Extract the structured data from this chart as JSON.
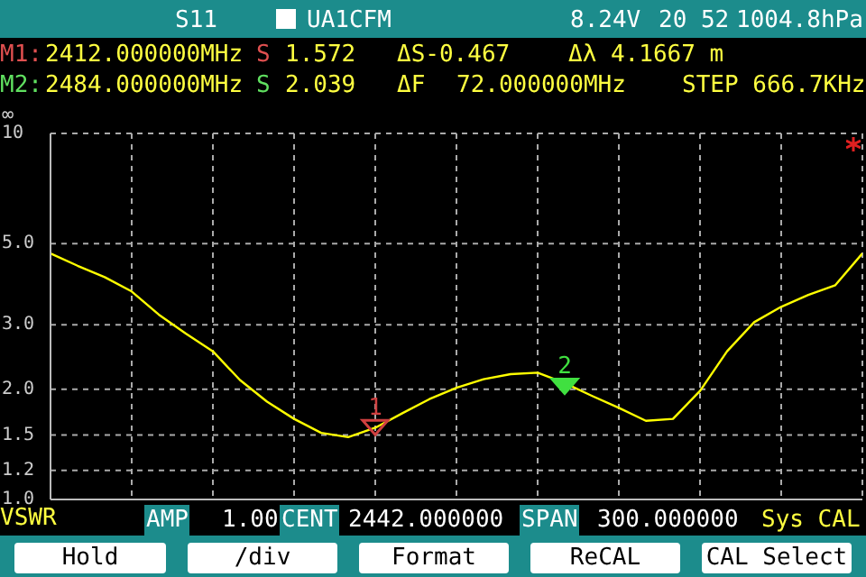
{
  "chart_data": {
    "type": "line",
    "ylabel": "VSWR",
    "categories": [
      null,
      null,
      null,
      null,
      null,
      null,
      null,
      null,
      null,
      null,
      null,
      null,
      null,
      null,
      null,
      null,
      null,
      null,
      null,
      null,
      null,
      null,
      null,
      null,
      null,
      null,
      null,
      null,
      null,
      null,
      null
    ],
    "ylim": [
      1,
      10
    ],
    "log": true,
    "yticks": [
      {
        "value": 1.0,
        "label": "1.0"
      },
      {
        "value": 1.2,
        "label": "1.2"
      },
      {
        "value": 1.5,
        "label": "1.5"
      },
      {
        "value": 2,
        "label": "2.0"
      },
      {
        "value": 3,
        "label": "3.0"
      },
      {
        "value": 5,
        "label": "5.0"
      },
      {
        "value": 10,
        "label": "10"
      }
    ],
    "tick_labels": "y",
    "grid": true,
    "series": [
      {
        "color": "#ffff00",
        "values": [
          4.7,
          4.35,
          4.05,
          3.7,
          3.2,
          2.84,
          2.54,
          2.12,
          1.85,
          1.66,
          1.52,
          1.48,
          1.57,
          1.72,
          1.88,
          2.02,
          2.13,
          2.2,
          2.22,
          2.08,
          1.92,
          1.78,
          1.64,
          1.66,
          1.98,
          2.54,
          3.05,
          3.36,
          3.62,
          3.85,
          4.7
        ]
      },
      {
        "type": "scatter",
        "marker": "triangle",
        "values": [
          null,
          null,
          null,
          null,
          null,
          null,
          null,
          null,
          null,
          null,
          null,
          null,
          1.572,
          null,
          null,
          null,
          null,
          null,
          null,
          2.039,
          null,
          null,
          null,
          null,
          null,
          null,
          null,
          null,
          null,
          null,
          null
        ],
        "colors": [
          null,
          null,
          null,
          null,
          null,
          null,
          null,
          null,
          null,
          null,
          null,
          null,
          "#d04040",
          null,
          null,
          null,
          null,
          null,
          null,
          "#40e040",
          null,
          null,
          null,
          null,
          null,
          null,
          null,
          null,
          null,
          null,
          null
        ]
      }
    ],
    "annotations": [
      "S11",
      "UA1CFM",
      "8.24V",
      "20 52",
      "1004.8hPa",
      "M1:",
      "2412.000000MHz",
      "S",
      "1.572",
      "ΔS-0.467",
      "Δλ 4.1667 m",
      "M2:",
      "2484.000000MHz",
      "S",
      "2.039",
      "ΔF",
      "72.000000MHz",
      "STEP 666.7KHz",
      "AMP",
      "1.00",
      "CENT",
      "2442.000000",
      "SPAN",
      "300.000000",
      "Sys CAL",
      "Hold",
      "/div",
      "Format",
      "ReCAL",
      "CAL Select",
      "∞",
      {
        "text": "1",
        "y": 1.572
      },
      {
        "text": "2",
        "y": 2.039
      }
    ]
  }
}
